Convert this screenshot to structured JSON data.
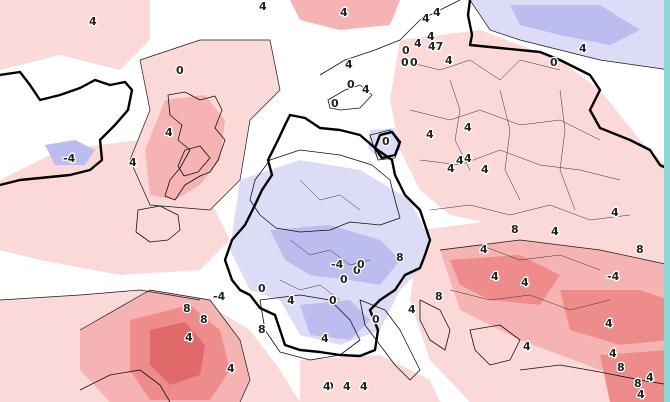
{
  "map": {
    "colors": {
      "background": "#ffffff",
      "warm_light": "#fbd9d9",
      "warm_medium": "#f6b3b3",
      "warm_strong": "#ee8c8c",
      "warm_deep": "#e06a6a",
      "cold_light": "#dcdcf6",
      "cold_medium": "#bcbcee",
      "zero_line": "#000000",
      "edge_strip": "#8ed8d8"
    },
    "labels": [
      {
        "id": "l1",
        "text": "4"
      },
      {
        "id": "l2",
        "text": "4"
      },
      {
        "id": "l3",
        "text": "4"
      },
      {
        "id": "l4",
        "text": "0"
      },
      {
        "id": "l5",
        "text": "4"
      },
      {
        "id": "l6",
        "text": "4"
      },
      {
        "id": "l7",
        "text": "4"
      },
      {
        "id": "l8",
        "text": "0"
      },
      {
        "id": "l9",
        "text": "4"
      },
      {
        "id": "l10",
        "text": "0"
      },
      {
        "id": "l11",
        "text": "0"
      },
      {
        "id": "l12",
        "text": "4"
      },
      {
        "id": "l13",
        "text": "47"
      },
      {
        "id": "l14",
        "text": "0"
      },
      {
        "id": "l15",
        "text": "4"
      },
      {
        "id": "l16",
        "text": "4"
      },
      {
        "id": "l17",
        "text": "0"
      },
      {
        "id": "l18",
        "text": "0"
      },
      {
        "id": "l19",
        "text": "4"
      },
      {
        "id": "l20",
        "text": "4"
      },
      {
        "id": "l21",
        "text": "4"
      },
      {
        "id": "l22",
        "text": "4"
      },
      {
        "id": "l23",
        "text": "4"
      },
      {
        "id": "l24",
        "text": "4"
      },
      {
        "id": "l25",
        "text": "4"
      },
      {
        "id": "l26",
        "text": "4"
      },
      {
        "id": "l27",
        "text": "-4"
      },
      {
        "id": "l28",
        "text": "4"
      },
      {
        "id": "l29",
        "text": "0"
      },
      {
        "id": "l30",
        "text": "0"
      },
      {
        "id": "l31",
        "text": "0"
      },
      {
        "id": "l32",
        "text": "8"
      },
      {
        "id": "l33",
        "text": "8"
      },
      {
        "id": "l34",
        "text": "4"
      },
      {
        "id": "l35",
        "text": "4"
      },
      {
        "id": "l36",
        "text": "4"
      },
      {
        "id": "l37",
        "text": "8"
      },
      {
        "id": "l38",
        "text": "4"
      },
      {
        "id": "l39",
        "text": "4"
      },
      {
        "id": "l40",
        "text": "-4"
      },
      {
        "id": "l41",
        "text": "0"
      },
      {
        "id": "l42",
        "text": "4"
      },
      {
        "id": "l43",
        "text": "-4"
      },
      {
        "id": "l44",
        "text": "0"
      },
      {
        "id": "l45",
        "text": "4"
      },
      {
        "id": "l46",
        "text": "8"
      },
      {
        "id": "l47",
        "text": "8"
      },
      {
        "id": "l48",
        "text": "4"
      },
      {
        "id": "l49",
        "text": "8"
      },
      {
        "id": "l50",
        "text": "4"
      },
      {
        "id": "l51",
        "text": "8"
      },
      {
        "id": "l52",
        "text": "4"
      },
      {
        "id": "l53",
        "text": "4"
      },
      {
        "id": "l54",
        "text": "4"
      },
      {
        "id": "l55",
        "text": "8"
      },
      {
        "id": "l56",
        "text": "8"
      },
      {
        "id": "l57",
        "text": "4"
      },
      {
        "id": "l58",
        "text": "4"
      },
      {
        "id": "l59",
        "text": "0"
      },
      {
        "id": "l60",
        "text": "4"
      },
      {
        "id": "l61",
        "text": "4"
      },
      {
        "id": "l62",
        "text": "4"
      },
      {
        "id": "l63",
        "text": "0"
      },
      {
        "id": "l64",
        "text": "0"
      },
      {
        "id": "l65",
        "text": "-4"
      },
      {
        "id": "l66",
        "text": "4"
      }
    ]
  }
}
